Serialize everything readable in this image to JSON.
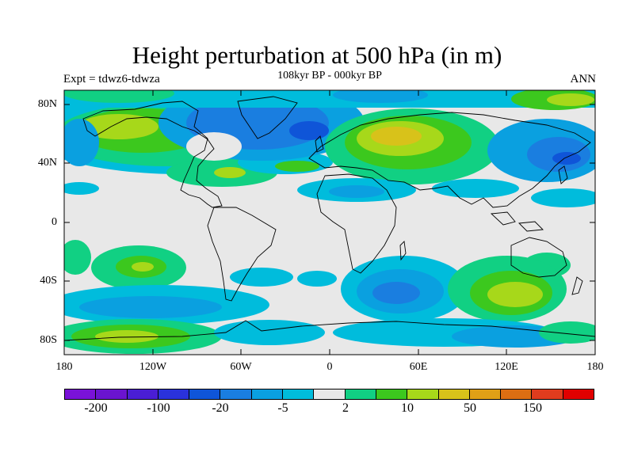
{
  "header": {
    "title": "Height perturbation at 500 hPa (in m)",
    "experiment": "Expt = tdwz6-tdwza",
    "period": "108kyr BP - 000kyr BP",
    "season": "ANN"
  },
  "axes": {
    "y_labels": [
      "80N",
      "40N",
      "0",
      "40S",
      "80S"
    ],
    "x_labels": [
      "180",
      "120W",
      "60W",
      "0",
      "60E",
      "120E",
      "180"
    ]
  },
  "colorbar": {
    "colors": [
      "#7a12d8",
      "#6a14d0",
      "#4a1ed4",
      "#2a32dc",
      "#0f55d8",
      "#1a7ee0",
      "#0aa0e0",
      "#00bcdc",
      "#e8e8e8",
      "#11d083",
      "#3cc81e",
      "#a7d81a",
      "#d8c21a",
      "#e0a016",
      "#dc6e12",
      "#e03c1e",
      "#e00000"
    ],
    "labels": [
      "-200",
      "-100",
      "-20",
      "-5",
      "2",
      "10",
      "50",
      "150"
    ]
  }
}
